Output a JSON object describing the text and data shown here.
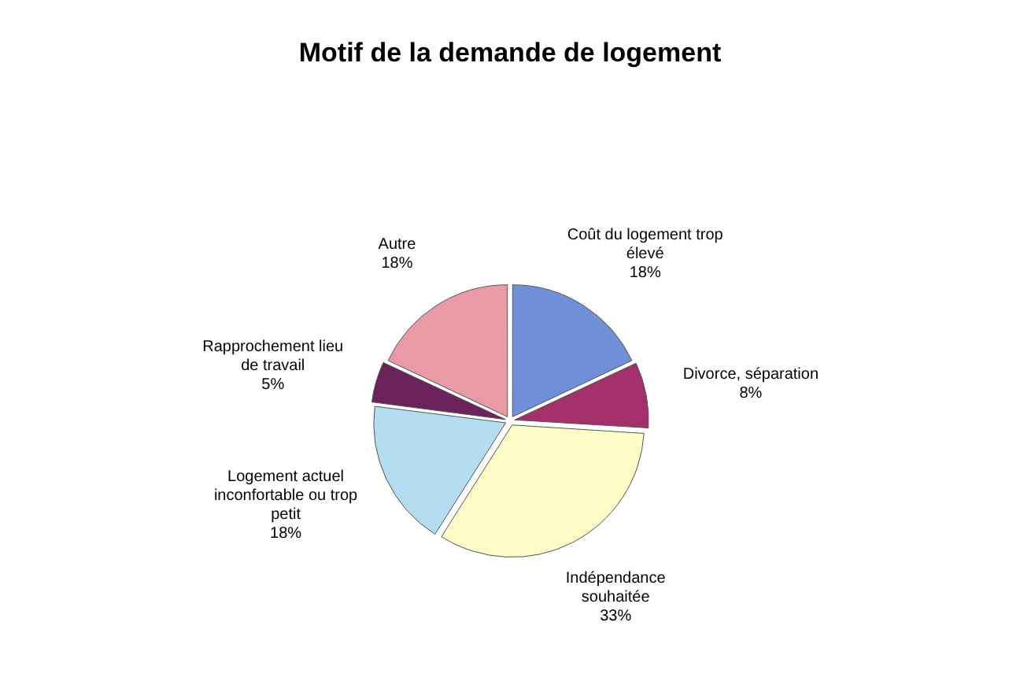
{
  "chart_data": {
    "type": "pie",
    "title": "Motif de la demande de logement",
    "categories": [
      "Coût du logement trop élevé",
      "Divorce, séparation",
      "Indépendance souhaitée",
      "Logement actuel inconfortable ou trop petit",
      "Rapprochement lieu de travail",
      "Autre"
    ],
    "values": [
      18,
      8,
      33,
      18,
      5,
      18
    ],
    "value_labels": [
      "18%",
      "8%",
      "33%",
      "18%",
      "5%",
      "18%"
    ],
    "colors": [
      "#6f8fd6",
      "#a3306b",
      "#fdfbc6",
      "#b4ddf1",
      "#6b2459",
      "#ea9aa6"
    ],
    "legend": false
  }
}
